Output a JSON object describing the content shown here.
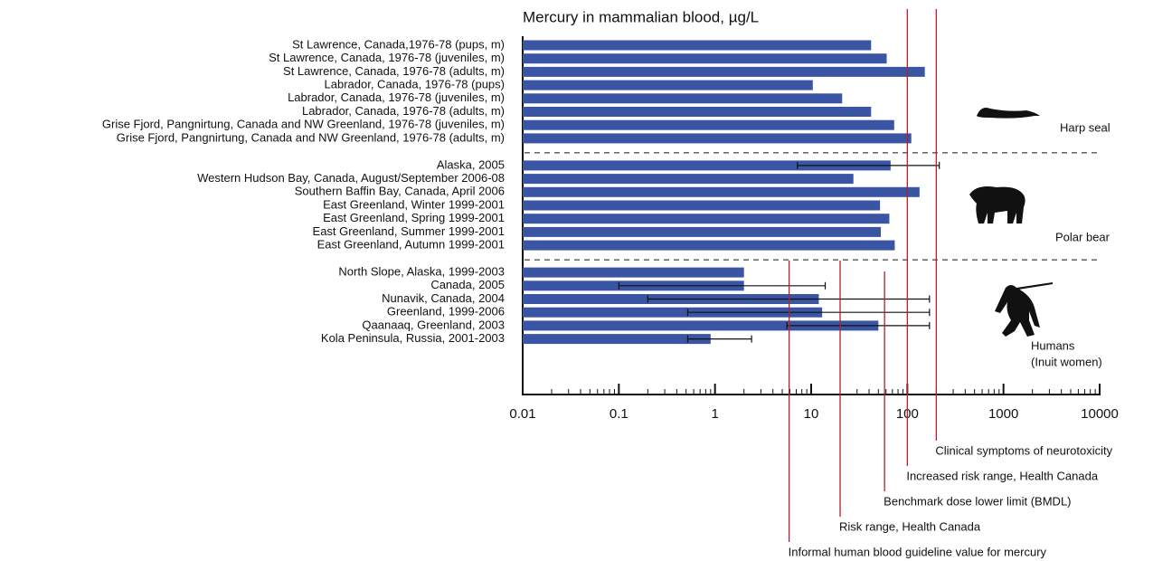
{
  "chart_data": {
    "type": "bar",
    "orientation": "horizontal",
    "xscale": "log",
    "title": "Mercury in mammalian blood, µg/L",
    "xlim": [
      0.01,
      10000
    ],
    "xticks": [
      0.01,
      0.1,
      1,
      10,
      100,
      1000,
      10000
    ],
    "xticks_minor": [
      0.02,
      0.03,
      0.04,
      0.05,
      0.06,
      0.07,
      0.08,
      0.09,
      0.2,
      0.3,
      0.4,
      0.5,
      0.6,
      0.7,
      0.8,
      0.9,
      2,
      3,
      4,
      5,
      6,
      7,
      8,
      9,
      20,
      30,
      40,
      50,
      60,
      70,
      80,
      90,
      200,
      300,
      400,
      500,
      600,
      700,
      800,
      900,
      2000,
      3000,
      4000,
      5000,
      6000,
      7000,
      8000,
      9000
    ],
    "color": "#3a55a4",
    "error_color": "#111111",
    "groups": [
      {
        "name": [
          "Harp seal"
        ],
        "categories": [
          "St Lawrence, Canada,1976-78 (pups, m)",
          "St Lawrence, Canada, 1976-78 (juveniles, m)",
          "St Lawrence, Canada, 1976-78 (adults, m)",
          "Labrador, Canada, 1976-78 (pups)",
          "Labrador, Canada, 1976-78 (juveniles, m)",
          "Labrador, Canada, 1976-78 (adults, m)",
          "Grise Fjord, Pangnirtung, Canada and NW Greenland, 1976-78 (juveniles, m)",
          "Grise Fjord, Pangnirtung, Canada and NW Greenland, 1976-78 (adults, m)"
        ],
        "values": [
          42,
          61,
          152,
          10.4,
          21,
          42,
          73,
          110
        ],
        "error_low": [
          null,
          null,
          null,
          null,
          null,
          null,
          null,
          null
        ],
        "error_high": [
          null,
          null,
          null,
          null,
          null,
          null,
          null,
          null
        ]
      },
      {
        "name": [
          "Polar bear"
        ],
        "categories": [
          "Alaska, 2005",
          "Western Hudson Bay, Canada, August/September 2006-08",
          "Southern Baffin  Bay, Canada, April 2006",
          "East Greenland, Winter 1999-2001",
          "East Greenland, Spring 1999-2001",
          "East Greenland, Summer 1999-2001",
          "East Greenland, Autumn 1999-2001"
        ],
        "values": [
          67,
          27.5,
          134,
          52,
          65,
          53,
          74
        ],
        "error_low": [
          7.2,
          null,
          null,
          null,
          null,
          null,
          null
        ],
        "error_high": [
          215,
          null,
          null,
          null,
          null,
          null,
          null
        ]
      },
      {
        "name": [
          "Humans",
          "(Inuit women)"
        ],
        "categories": [
          "North Slope, Alaska, 1999-2003",
          "Canada, 2005",
          "Nunavik, Canada, 2004",
          "Greenland, 1999-2006",
          "Qaanaaq, Greenland, 2003",
          "Kola Peninsula, Russia, 2001-2003"
        ],
        "values": [
          2.0,
          2.0,
          12,
          13,
          50,
          0.9
        ],
        "error_low": [
          null,
          0.1,
          0.2,
          0.52,
          5.6,
          0.52
        ],
        "error_high": [
          null,
          14,
          170,
          170,
          170,
          2.4
        ]
      }
    ],
    "reference_color": "#b5202a",
    "reference_lines": [
      {
        "value": 5.9,
        "label": "Informal human blood guideline value for mercury"
      },
      {
        "value": 20,
        "label": "Risk range, Health Canada"
      },
      {
        "value": 58,
        "label": "Benchmark dose lower limit (BMDL)"
      },
      {
        "value": 100,
        "label": "Increased risk range, Health Canada"
      },
      {
        "value": 200,
        "label": "Clinical symptoms of neurotoxicity"
      }
    ]
  }
}
